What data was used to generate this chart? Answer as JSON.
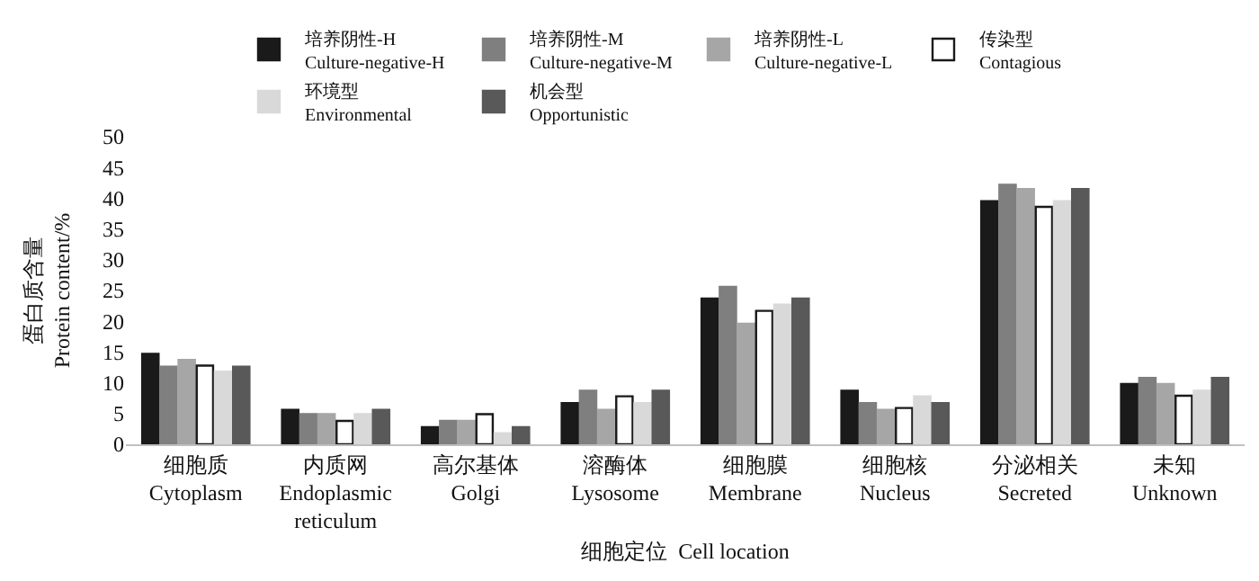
{
  "chart_data": {
    "type": "bar",
    "xlabel": "细胞定位  Cell location",
    "ylabel": "蛋白质含量\nProtein content/%",
    "categories": [
      "细胞质\nCytoplasm",
      "内质网\nEndoplasmic\nreticulum",
      "高尔基体\nGolgi",
      "溶酶体\nLysosome",
      "细胞膜\nMembrane",
      "细胞核\nNucleus",
      "分泌相关\nSecreted",
      "未知\nUnknown"
    ],
    "series": [
      {
        "name": "培养阴性-H\nCulture-negative-H",
        "color": "#1a1a1a",
        "values": [
          14.7,
          5.6,
          2.8,
          6.7,
          23.7,
          8.7,
          39.5,
          9.8
        ]
      },
      {
        "name": "培养阴性-M\nCulture-negative-M",
        "color": "#7f7f7f",
        "values": [
          12.6,
          4.9,
          3.8,
          8.7,
          25.6,
          6.7,
          42.2,
          10.8
        ]
      },
      {
        "name": "培养阴性-L\nCulture-negative-L",
        "color": "#a6a6a6",
        "values": [
          13.7,
          4.9,
          3.8,
          5.6,
          19.6,
          5.6,
          41.5,
          9.8
        ]
      },
      {
        "name": "传染型\nContagious",
        "color": "#ffffff",
        "values": [
          12.8,
          3.8,
          4.9,
          7.8,
          21.7,
          5.9,
          38.6,
          7.9
        ]
      },
      {
        "name": "环境型\nEnvironmental",
        "color": "#d9d9d9",
        "values": [
          11.8,
          4.9,
          1.8,
          6.7,
          22.7,
          7.8,
          39.5,
          8.7
        ]
      },
      {
        "name": "机会型\nOpportunistic",
        "color": "#595959",
        "values": [
          12.6,
          5.6,
          2.8,
          8.7,
          23.7,
          6.7,
          41.5,
          10.8
        ]
      }
    ],
    "ylim": [
      0,
      50
    ],
    "yticks": [
      0,
      5,
      10,
      15,
      20,
      25,
      30,
      35,
      40,
      45,
      50
    ],
    "legend": "top"
  }
}
